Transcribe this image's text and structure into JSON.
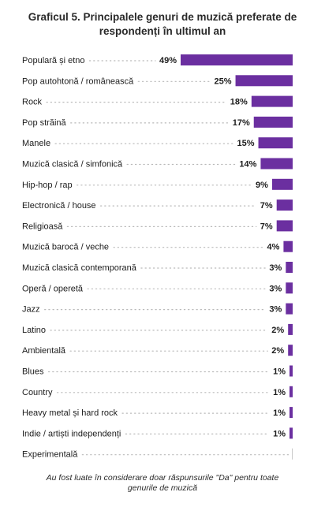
{
  "title_line1": "Graficul 5. Principalele genuri de muzică preferate de",
  "title_line2": "respondenți în ultimul an",
  "footnote_line1": "Au fost luate în considerare doar răspunsurile \"Da\" pentru toate",
  "footnote_line2": "genurile de muzică",
  "colors": {
    "bar": "#6b2fa0",
    "dots": "#b9b9b9",
    "text": "#1d1d1d"
  },
  "chart_data": {
    "type": "bar",
    "orientation": "horizontal",
    "categories": [
      "Populară și etno",
      "Pop autohtonă / românească",
      "Rock",
      "Pop străină",
      "Manele",
      "Muzică clasică / simfonică",
      "Hip-hop / rap",
      "Electronică / house",
      "Religioasă",
      "Muzică barocă / veche",
      "Muzică clasică contemporană",
      "Operă / operetă",
      "Jazz",
      "Latino",
      "Ambientală",
      "Blues",
      "Country",
      "Heavy metal și hard rock",
      "Indie / artiști independenți",
      "Experimentală"
    ],
    "values": [
      49,
      25,
      18,
      17,
      15,
      14,
      9,
      7,
      7,
      4,
      3,
      3,
      3,
      2,
      2,
      1,
      1,
      1,
      1,
      0
    ],
    "value_labels": [
      "49%",
      "25%",
      "18%",
      "17%",
      "15%",
      "14%",
      "9%",
      "7%",
      "7%",
      "4%",
      "3%",
      "3%",
      "3%",
      "2%",
      "2%",
      "1%",
      "1%",
      "1%",
      "1%",
      ""
    ],
    "xlim": [
      0,
      49
    ]
  }
}
